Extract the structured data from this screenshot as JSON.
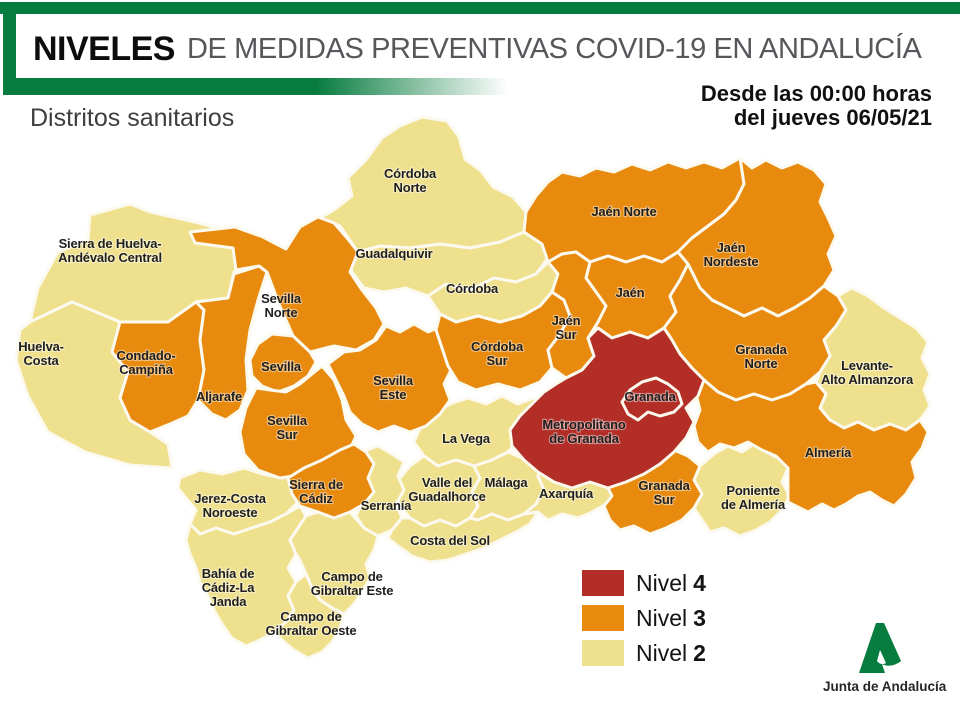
{
  "header": {
    "title_bold": "NIVELES",
    "title_rest": "DE MEDIDAS PREVENTIVAS COVID-19 EN ANDALUCÍA",
    "subtitle": "Distritos sanitarios",
    "date_line1": "Desde las 00:00 horas",
    "date_line2": "del jueves 06/05/21"
  },
  "colors": {
    "brand_green": "#077c3f",
    "nivel4": "#b22e27",
    "nivel3": "#e78a0d",
    "nivel2": "#efe08d",
    "border": "#fcf9ef",
    "label_text": "#1f1f1f"
  },
  "legend": {
    "items": [
      {
        "label": "Nivel",
        "value": "4",
        "level": 4
      },
      {
        "label": "Nivel",
        "value": "3",
        "level": 3
      },
      {
        "label": "Nivel",
        "value": "2",
        "level": 2
      }
    ]
  },
  "footer": {
    "logo_text": "Junta de Andalucía"
  },
  "map": {
    "districts": [
      {
        "id": "sierra-huelva",
        "name": "Sierra de Huelva-Andévalo Central",
        "level": 2,
        "lines": [
          "Sierra de Huelva-",
          "Andévalo Central"
        ]
      },
      {
        "id": "huelva-costa",
        "name": "Huelva-Costa",
        "level": 2,
        "lines": [
          "Huelva-",
          "Costa"
        ]
      },
      {
        "id": "cordoba-norte",
        "name": "Córdoba Norte",
        "level": 2,
        "lines": [
          "Córdoba",
          "Norte"
        ]
      },
      {
        "id": "guadalquivir",
        "name": "Guadalquivir",
        "level": 2,
        "lines": [
          "Guadalquivir"
        ]
      },
      {
        "id": "cordoba",
        "name": "Córdoba",
        "level": 2,
        "lines": [
          "Córdoba"
        ]
      },
      {
        "id": "levante",
        "name": "Levante-Alto Almanzora",
        "level": 2,
        "lines": [
          "Levante-",
          "Alto Almanzora"
        ]
      },
      {
        "id": "la-vega",
        "name": "La Vega",
        "level": 2,
        "lines": [
          "La Vega"
        ]
      },
      {
        "id": "valle-guadalhorce",
        "name": "Valle del Guadalhorce",
        "level": 2,
        "lines": [
          "Valle del",
          "Guadalhorce"
        ]
      },
      {
        "id": "malaga",
        "name": "Málaga",
        "level": 2,
        "lines": [
          "Málaga"
        ]
      },
      {
        "id": "axarquia",
        "name": "Axarquía",
        "level": 2,
        "lines": [
          "Axarquía"
        ]
      },
      {
        "id": "poniente",
        "name": "Poniente de Almería",
        "level": 2,
        "lines": [
          "Poniente",
          "de Almería"
        ]
      },
      {
        "id": "jerez",
        "name": "Jerez-Costa Noroeste",
        "level": 2,
        "lines": [
          "Jerez-Costa",
          "Noroeste"
        ]
      },
      {
        "id": "serrania",
        "name": "Serranía",
        "level": 2,
        "lines": [
          "Serranía"
        ]
      },
      {
        "id": "costa-del-sol",
        "name": "Costa del Sol",
        "level": 2,
        "lines": [
          "Costa del Sol"
        ]
      },
      {
        "id": "bahia-cadiz",
        "name": "Bahía de Cádiz-La Janda",
        "level": 2,
        "lines": [
          "Bahía de",
          "Cádiz-La",
          "Janda"
        ]
      },
      {
        "id": "campo-este",
        "name": "Campo de Gibraltar Este",
        "level": 2,
        "lines": [
          "Campo de",
          "Gibraltar Este"
        ]
      },
      {
        "id": "campo-oeste",
        "name": "Campo de Gibraltar Oeste",
        "level": 2,
        "lines": [
          "Campo de",
          "Gibraltar Oeste"
        ]
      },
      {
        "id": "condado-campina",
        "name": "Condado-Campiña",
        "level": 3,
        "lines": [
          "Condado-",
          "Campiña"
        ]
      },
      {
        "id": "aljarafe",
        "name": "Aljarafe",
        "level": 3,
        "lines": [
          "Aljarafe"
        ]
      },
      {
        "id": "sevilla-norte",
        "name": "Sevilla Norte",
        "level": 3,
        "lines": [
          "Sevilla",
          "Norte"
        ]
      },
      {
        "id": "sevilla",
        "name": "Sevilla",
        "level": 3,
        "lines": [
          "Sevilla"
        ]
      },
      {
        "id": "sevilla-este",
        "name": "Sevilla Este",
        "level": 3,
        "lines": [
          "Sevilla",
          "Este"
        ]
      },
      {
        "id": "sevilla-sur",
        "name": "Sevilla Sur",
        "level": 3,
        "lines": [
          "Sevilla",
          "Sur"
        ]
      },
      {
        "id": "cordoba-sur",
        "name": "Córdoba Sur",
        "level": 3,
        "lines": [
          "Córdoba",
          "Sur"
        ]
      },
      {
        "id": "jaen-norte",
        "name": "Jaén Norte",
        "level": 3,
        "lines": [
          "Jaén Norte"
        ]
      },
      {
        "id": "jaen",
        "name": "Jaén",
        "level": 3,
        "lines": [
          "Jaén"
        ]
      },
      {
        "id": "jaen-sur",
        "name": "Jaén Sur",
        "level": 3,
        "lines": [
          "Jaén",
          "Sur"
        ]
      },
      {
        "id": "jaen-nordeste",
        "name": "Jaén Nordeste",
        "level": 3,
        "lines": [
          "Jaén",
          "Nordeste"
        ]
      },
      {
        "id": "granada-norte",
        "name": "Granada Norte",
        "level": 3,
        "lines": [
          "Granada",
          "Norte"
        ]
      },
      {
        "id": "granada-sur",
        "name": "Granada Sur",
        "level": 3,
        "lines": [
          "Granada",
          "Sur"
        ]
      },
      {
        "id": "almeria",
        "name": "Almería",
        "level": 3,
        "lines": [
          "Almería"
        ]
      },
      {
        "id": "sierra-cadiz",
        "name": "Sierra de Cádiz",
        "level": 3,
        "lines": [
          "Sierra de",
          "Cádiz"
        ]
      },
      {
        "id": "metropolitano",
        "name": "Metropolitano de Granada",
        "level": 4,
        "lines": [
          "Metropolitano",
          "de Granada"
        ]
      },
      {
        "id": "granada-city",
        "name": "Granada",
        "level": 4,
        "lines": [
          "Granada"
        ]
      }
    ]
  }
}
